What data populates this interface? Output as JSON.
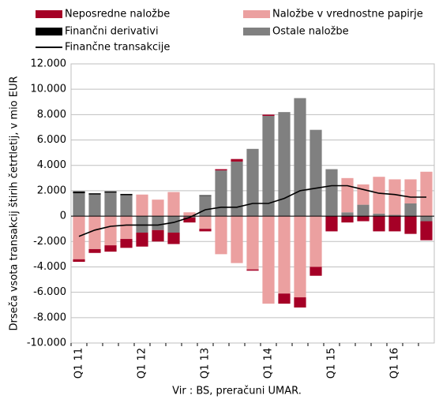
{
  "chart_data": {
    "type": "bar",
    "stacked": true,
    "y_label": "Drseča vsota transakcij štirih četrtletij, v mio EUR",
    "source": "Vir : BS, preračuni UMAR.",
    "categories": [
      "Q1 11",
      null,
      null,
      null,
      "Q1 12",
      null,
      null,
      null,
      "Q1 13",
      null,
      null,
      null,
      "Q1 14",
      null,
      null,
      null,
      "Q1 15",
      null,
      null,
      null,
      "Q1 16",
      null,
      null
    ],
    "series": [
      {
        "name": "Neposredne naložbe",
        "color": "#a50026",
        "values": [
          -200,
          -300,
          -500,
          -700,
          -1100,
          -900,
          -900,
          -400,
          -200,
          100,
          200,
          -100,
          100,
          -800,
          -800,
          -700,
          -1200,
          -500,
          -400,
          -1200,
          -1200,
          -1400,
          -1500
        ]
      },
      {
        "name": "Naložbe v vrednostne papirje",
        "color": "#eba0a0",
        "values": [
          -3400,
          -2600,
          -2300,
          -1800,
          1700,
          1300,
          1900,
          300,
          -1000,
          -3000,
          -3700,
          -4200,
          -6900,
          -6100,
          -6400,
          -4000,
          0,
          2700,
          1600,
          2900,
          2800,
          1900,
          3500
        ]
      },
      {
        "name": "Finančni derivativi",
        "color": "#000000",
        "values": [
          150,
          100,
          100,
          100,
          0,
          0,
          0,
          0,
          50,
          0,
          0,
          0,
          0,
          0,
          0,
          0,
          0,
          0,
          0,
          0,
          0,
          0,
          0
        ]
      },
      {
        "name": "Ostale naložbe",
        "color": "#808080",
        "values": [
          1800,
          1700,
          1850,
          1650,
          -1300,
          -1100,
          -1300,
          -100,
          1600,
          3600,
          4300,
          5300,
          7900,
          8200,
          9300,
          6800,
          3700,
          300,
          900,
          200,
          100,
          1000,
          -400
        ]
      },
      {
        "name": "Finančne transakcije",
        "color": "#000000",
        "type": "line",
        "values": [
          -1600,
          -1100,
          -800,
          -700,
          -700,
          -700,
          -500,
          -100,
          500,
          700,
          700,
          1000,
          1000,
          1400,
          2000,
          2200,
          2400,
          2400,
          2100,
          1800,
          1700,
          1500,
          1500
        ]
      }
    ],
    "ylim": [
      -10000,
      12000
    ],
    "yticks": [
      {
        "value": -10000,
        "label": "-10.000"
      },
      {
        "value": -8000,
        "label": "-8.000"
      },
      {
        "value": -6000,
        "label": "-6.000"
      },
      {
        "value": -4000,
        "label": "-4.000"
      },
      {
        "value": -2000,
        "label": "-2.000"
      },
      0,
      {
        "value": 2000,
        "label": "2.000"
      },
      {
        "value": 4000,
        "label": "4.000"
      },
      {
        "value": 6000,
        "label": "6.000"
      },
      {
        "value": 8000,
        "label": "8.000"
      },
      {
        "value": 10000,
        "label": "10.000"
      },
      {
        "value": 12000,
        "label": "12.000"
      }
    ],
    "grid": true
  }
}
